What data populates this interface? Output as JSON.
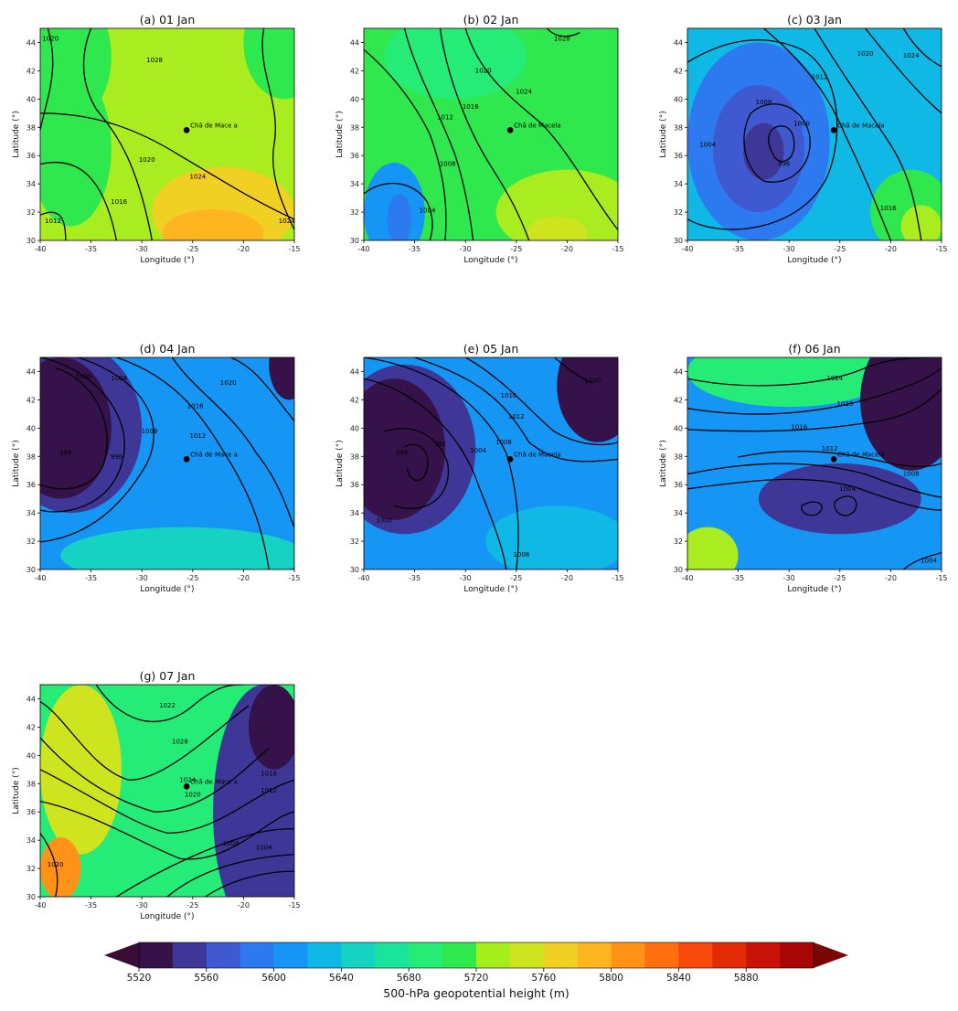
{
  "figure": {
    "colorbar": {
      "label": "500-hPa geopotential height (m)",
      "tick_labels": [
        "5520",
        "5560",
        "5600",
        "5640",
        "5680",
        "5720",
        "5760",
        "5800",
        "5840",
        "5880"
      ],
      "colors": [
        "#36124a",
        "#3f3797",
        "#3f5ad0",
        "#2d7af0",
        "#1596f5",
        "#10b8e6",
        "#16d2c2",
        "#1ae49b",
        "#24ec76",
        "#2fe84d",
        "#a5ee1c",
        "#cde41f",
        "#f1d024",
        "#ffb520",
        "#ff9217",
        "#ff6f10",
        "#f6490b",
        "#e42b08",
        "#c81208",
        "#a80505"
      ],
      "under_color": "#3a0d39",
      "over_color": "#7a0505"
    },
    "axes": {
      "xlabel": "Longitude (°)",
      "ylabel": "Latitude (°)",
      "xticks": [
        "-40",
        "-35",
        "-30",
        "-25",
        "-20",
        "-15"
      ],
      "yticks": [
        "30",
        "32",
        "34",
        "36",
        "38",
        "40",
        "42",
        "44"
      ],
      "xlim": [
        -40,
        -15
      ],
      "ylim": [
        30,
        45
      ]
    },
    "marker": {
      "lon": -25.6,
      "lat": 37.8
    },
    "panels": [
      {
        "title": "(a) 01 Jan",
        "marker_label": "Chã de Mace a",
        "contour_labels": [
          "1020",
          "1028",
          "1020",
          "1024",
          "1016",
          "1012",
          "1024"
        ],
        "base_color": "#a9ec1f",
        "field_blobs": [
          {
            "lon": -16,
            "lat": 44,
            "rx": 4,
            "ry": 4,
            "color": "#2fe84d"
          },
          {
            "lon": -38,
            "lat": 43,
            "rx": 5,
            "ry": 5,
            "color": "#2fe84d"
          },
          {
            "lon": -37,
            "lat": 36.5,
            "rx": 4,
            "ry": 5.5,
            "color": "#2fe84d"
          },
          {
            "lon": -22,
            "lat": 32,
            "rx": 7,
            "ry": 3.2,
            "color": "#f1d024"
          },
          {
            "lon": -23,
            "lat": 30.5,
            "rx": 5,
            "ry": 1.7,
            "color": "#ffb520"
          }
        ]
      },
      {
        "title": "(b) 02 Jan",
        "marker_label": "Chã de Macela",
        "contour_labels": [
          "1028",
          "1020",
          "1024",
          "1016",
          "1012",
          "1008",
          "1004"
        ],
        "base_color": "#2fe84d",
        "field_blobs": [
          {
            "lon": -37,
            "lat": 32,
            "rx": 3,
            "ry": 3.5,
            "color": "#1596f5"
          },
          {
            "lon": -36.5,
            "lat": 31.5,
            "rx": 1.2,
            "ry": 1.8,
            "color": "#2d7af0"
          },
          {
            "lon": -31,
            "lat": 43,
            "rx": 7,
            "ry": 3,
            "color": "#24ec76"
          },
          {
            "lon": -20,
            "lat": 32,
            "rx": 7,
            "ry": 3,
            "color": "#a9ec1f"
          },
          {
            "lon": -21,
            "lat": 30.5,
            "rx": 3,
            "ry": 1.2,
            "color": "#cde41f"
          }
        ]
      },
      {
        "title": "(c) 03 Jan",
        "marker_label": "Chã de Macela",
        "contour_labels": [
          "1008",
          "1012",
          "1020",
          "1024",
          "1000",
          "1004",
          "996",
          "1016"
        ],
        "base_color": "#10b8e6",
        "field_blobs": [
          {
            "lon": -33,
            "lat": 37,
            "rx": 7,
            "ry": 7,
            "color": "#2d7af0"
          },
          {
            "lon": -33,
            "lat": 36.5,
            "rx": 4.5,
            "ry": 4.5,
            "color": "#3f5ad0"
          },
          {
            "lon": -32.5,
            "lat": 36.3,
            "rx": 2,
            "ry": 2,
            "color": "#3f3797"
          },
          {
            "lon": -18,
            "lat": 32,
            "rx": 4,
            "ry": 3,
            "color": "#2fe84d"
          },
          {
            "lon": -17,
            "lat": 31,
            "rx": 2,
            "ry": 1.5,
            "color": "#a9ec1f"
          }
        ]
      },
      {
        "title": "(d) 04 Jan",
        "marker_label": "Chã de Mace a",
        "contour_labels": [
          "1000",
          "1004",
          "1016",
          "1020",
          "1008",
          "1012",
          "996",
          "996"
        ],
        "base_color": "#1596f5",
        "field_blobs": [
          {
            "lon": -37,
            "lat": 40,
            "rx": 7,
            "ry": 6,
            "color": "#3f3797"
          },
          {
            "lon": -38,
            "lat": 40,
            "rx": 5,
            "ry": 5,
            "color": "#36124a"
          },
          {
            "lon": -15.5,
            "lat": 44.5,
            "rx": 2,
            "ry": 2.5,
            "color": "#36124a"
          },
          {
            "lon": -26,
            "lat": 31,
            "rx": 12,
            "ry": 2,
            "color": "#16d2c2"
          }
        ]
      },
      {
        "title": "(e) 05 Jan",
        "marker_label": "Chã de Macela",
        "contour_labels": [
          "1016",
          "1012",
          "1020",
          "1004",
          "1008",
          "1000",
          "996",
          "992",
          "1008"
        ],
        "base_color": "#1596f5",
        "field_blobs": [
          {
            "lon": -36,
            "lat": 38.5,
            "rx": 7,
            "ry": 6,
            "color": "#3f3797"
          },
          {
            "lon": -37,
            "lat": 38.5,
            "rx": 5,
            "ry": 5,
            "color": "#36124a"
          },
          {
            "lon": -17,
            "lat": 43,
            "rx": 4,
            "ry": 4,
            "color": "#36124a"
          },
          {
            "lon": -21,
            "lat": 32,
            "rx": 7,
            "ry": 2.5,
            "color": "#10b8e6"
          }
        ]
      },
      {
        "title": "(f) 06 Jan",
        "marker_label": "Chã de Macela",
        "contour_labels": [
          "1024",
          "1020",
          "1016",
          "1012",
          "1008",
          "1004",
          "1004"
        ],
        "base_color": "#1596f5",
        "field_blobs": [
          {
            "lon": -30,
            "lat": 44,
            "rx": 10,
            "ry": 2.5,
            "color": "#24ec76"
          },
          {
            "lon": -18,
            "lat": 42,
            "rx": 5,
            "ry": 5,
            "color": "#36124a"
          },
          {
            "lon": -25,
            "lat": 35,
            "rx": 8,
            "ry": 2.5,
            "color": "#3f3797"
          },
          {
            "lon": -38,
            "lat": 31,
            "rx": 3,
            "ry": 2,
            "color": "#a9ec1f"
          }
        ]
      },
      {
        "title": "(g) 07 Jan",
        "marker_label": "Chã de Mace a",
        "contour_labels": [
          "1022",
          "1028",
          "1024",
          "1020",
          "1016",
          "1012",
          "1008",
          "1004",
          "1020"
        ],
        "base_color": "#24ec76",
        "field_blobs": [
          {
            "lon": -36,
            "lat": 39,
            "rx": 4,
            "ry": 6,
            "color": "#cde41f"
          },
          {
            "lon": -38,
            "lat": 32,
            "rx": 2,
            "ry": 2.2,
            "color": "#ff9217"
          },
          {
            "lon": -18,
            "lat": 36,
            "rx": 5,
            "ry": 9,
            "color": "#3f3797"
          },
          {
            "lon": -17,
            "lat": 42,
            "rx": 2.5,
            "ry": 3,
            "color": "#36124a"
          }
        ]
      }
    ]
  }
}
